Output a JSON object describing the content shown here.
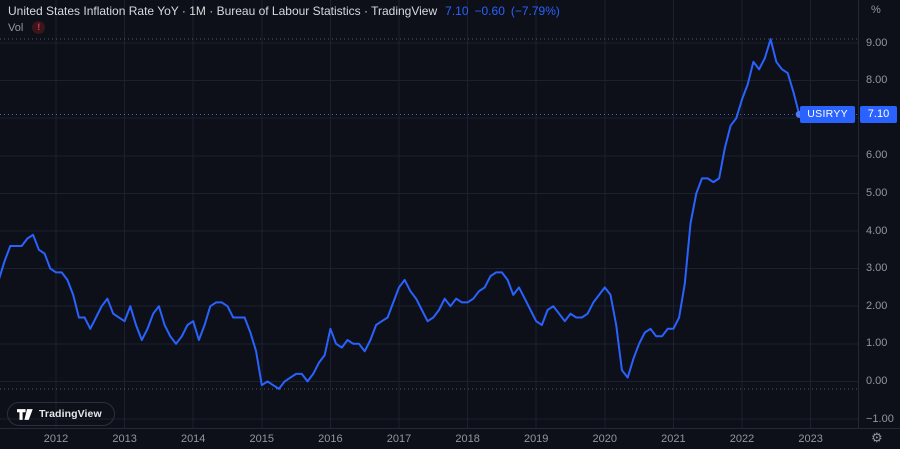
{
  "header": {
    "title": "United States Inflation Rate YoY · 1M · Bureau of Labour Statistics · TradingView",
    "last_value": "7.10",
    "change": "−0.60",
    "change_pct": "(−7.79%)",
    "vol_label": "Vol",
    "alert_glyph": "!"
  },
  "colors": {
    "bg": "#0d1018",
    "grid": "#1b2130",
    "axis_border": "#232939",
    "line": "#2962FF",
    "marker": "#4d79ff",
    "badge": "#2962FF",
    "value_text": "#2962FF",
    "title_text": "#d6d9de",
    "axis_text": "#9196a1",
    "ref_line": "#555a67",
    "price_line": "#4a66c8",
    "alert": "#f23645",
    "alert_bg": "#3a161c",
    "pill_border": "#2b303c"
  },
  "price_scale": {
    "unit_label": "%",
    "ticks": [
      {
        "label": "9.00",
        "value": 9
      },
      {
        "label": "8.00",
        "value": 8
      },
      {
        "label": "7.00",
        "value": 7
      },
      {
        "label": "6.00",
        "value": 6
      },
      {
        "label": "5.00",
        "value": 5
      },
      {
        "label": "4.00",
        "value": 4
      },
      {
        "label": "3.00",
        "value": 3
      },
      {
        "label": "2.00",
        "value": 2
      },
      {
        "label": "1.00",
        "value": 1
      },
      {
        "label": "0.00",
        "value": 0
      },
      {
        "label": "−1.00",
        "value": -1
      }
    ],
    "last_price_label": "7.10",
    "symbol_badge": "USIRYY"
  },
  "time_scale": {
    "ticks": [
      {
        "label": "2012",
        "year": 2012
      },
      {
        "label": "2013",
        "year": 2013
      },
      {
        "label": "2014",
        "year": 2014
      },
      {
        "label": "2015",
        "year": 2015
      },
      {
        "label": "2016",
        "year": 2016
      },
      {
        "label": "2017",
        "year": 2017
      },
      {
        "label": "2018",
        "year": 2018
      },
      {
        "label": "2019",
        "year": 2019
      },
      {
        "label": "2020",
        "year": 2020
      },
      {
        "label": "2021",
        "year": 2021
      },
      {
        "label": "2022",
        "year": 2022
      },
      {
        "label": "2023",
        "year": 2023
      }
    ]
  },
  "logo": {
    "text": "TradingView"
  },
  "chart_data": {
    "type": "line",
    "title": "United States Inflation Rate YoY",
    "symbol": "USIRYY",
    "interval": "1M",
    "source": "Bureau of Labour Statistics",
    "unit": "%",
    "frequency": "monthly",
    "x_start": "2011-03",
    "x_end": "2022-11",
    "last": 7.1,
    "change": -0.6,
    "change_pct": -7.79,
    "high": 9.1,
    "low": -0.2,
    "price_line_value": 7.1,
    "ylim": [
      -1.2,
      10.2
    ],
    "y_gridline_step": 1,
    "grid": true,
    "legend_position": "top-left",
    "line_color": "#2962FF",
    "values": [
      2.7,
      3.2,
      3.6,
      3.6,
      3.6,
      3.8,
      3.9,
      3.5,
      3.4,
      3.0,
      2.9,
      2.9,
      2.7,
      2.3,
      1.7,
      1.7,
      1.4,
      1.7,
      2.0,
      2.2,
      1.8,
      1.7,
      1.6,
      2.0,
      1.5,
      1.1,
      1.4,
      1.8,
      2.0,
      1.5,
      1.2,
      1.0,
      1.2,
      1.5,
      1.6,
      1.1,
      1.5,
      2.0,
      2.1,
      2.1,
      2.0,
      1.7,
      1.7,
      1.7,
      1.3,
      0.8,
      -0.1,
      0.0,
      -0.1,
      -0.2,
      0.0,
      0.1,
      0.2,
      0.2,
      0.0,
      0.2,
      0.5,
      0.7,
      1.4,
      1.0,
      0.9,
      1.1,
      1.0,
      1.0,
      0.8,
      1.1,
      1.5,
      1.6,
      1.7,
      2.1,
      2.5,
      2.7,
      2.4,
      2.2,
      1.9,
      1.6,
      1.7,
      1.9,
      2.2,
      2.0,
      2.2,
      2.1,
      2.1,
      2.2,
      2.4,
      2.5,
      2.8,
      2.9,
      2.9,
      2.7,
      2.3,
      2.5,
      2.2,
      1.9,
      1.6,
      1.5,
      1.9,
      2.0,
      1.8,
      1.6,
      1.8,
      1.7,
      1.7,
      1.8,
      2.1,
      2.3,
      2.5,
      2.3,
      1.5,
      0.3,
      0.1,
      0.6,
      1.0,
      1.3,
      1.4,
      1.2,
      1.2,
      1.4,
      1.4,
      1.7,
      2.6,
      4.2,
      5.0,
      5.4,
      5.4,
      5.3,
      5.4,
      6.2,
      6.8,
      7.0,
      7.5,
      7.9,
      8.5,
      8.3,
      8.6,
      9.1,
      8.5,
      8.3,
      8.2,
      7.7,
      7.1
    ]
  }
}
